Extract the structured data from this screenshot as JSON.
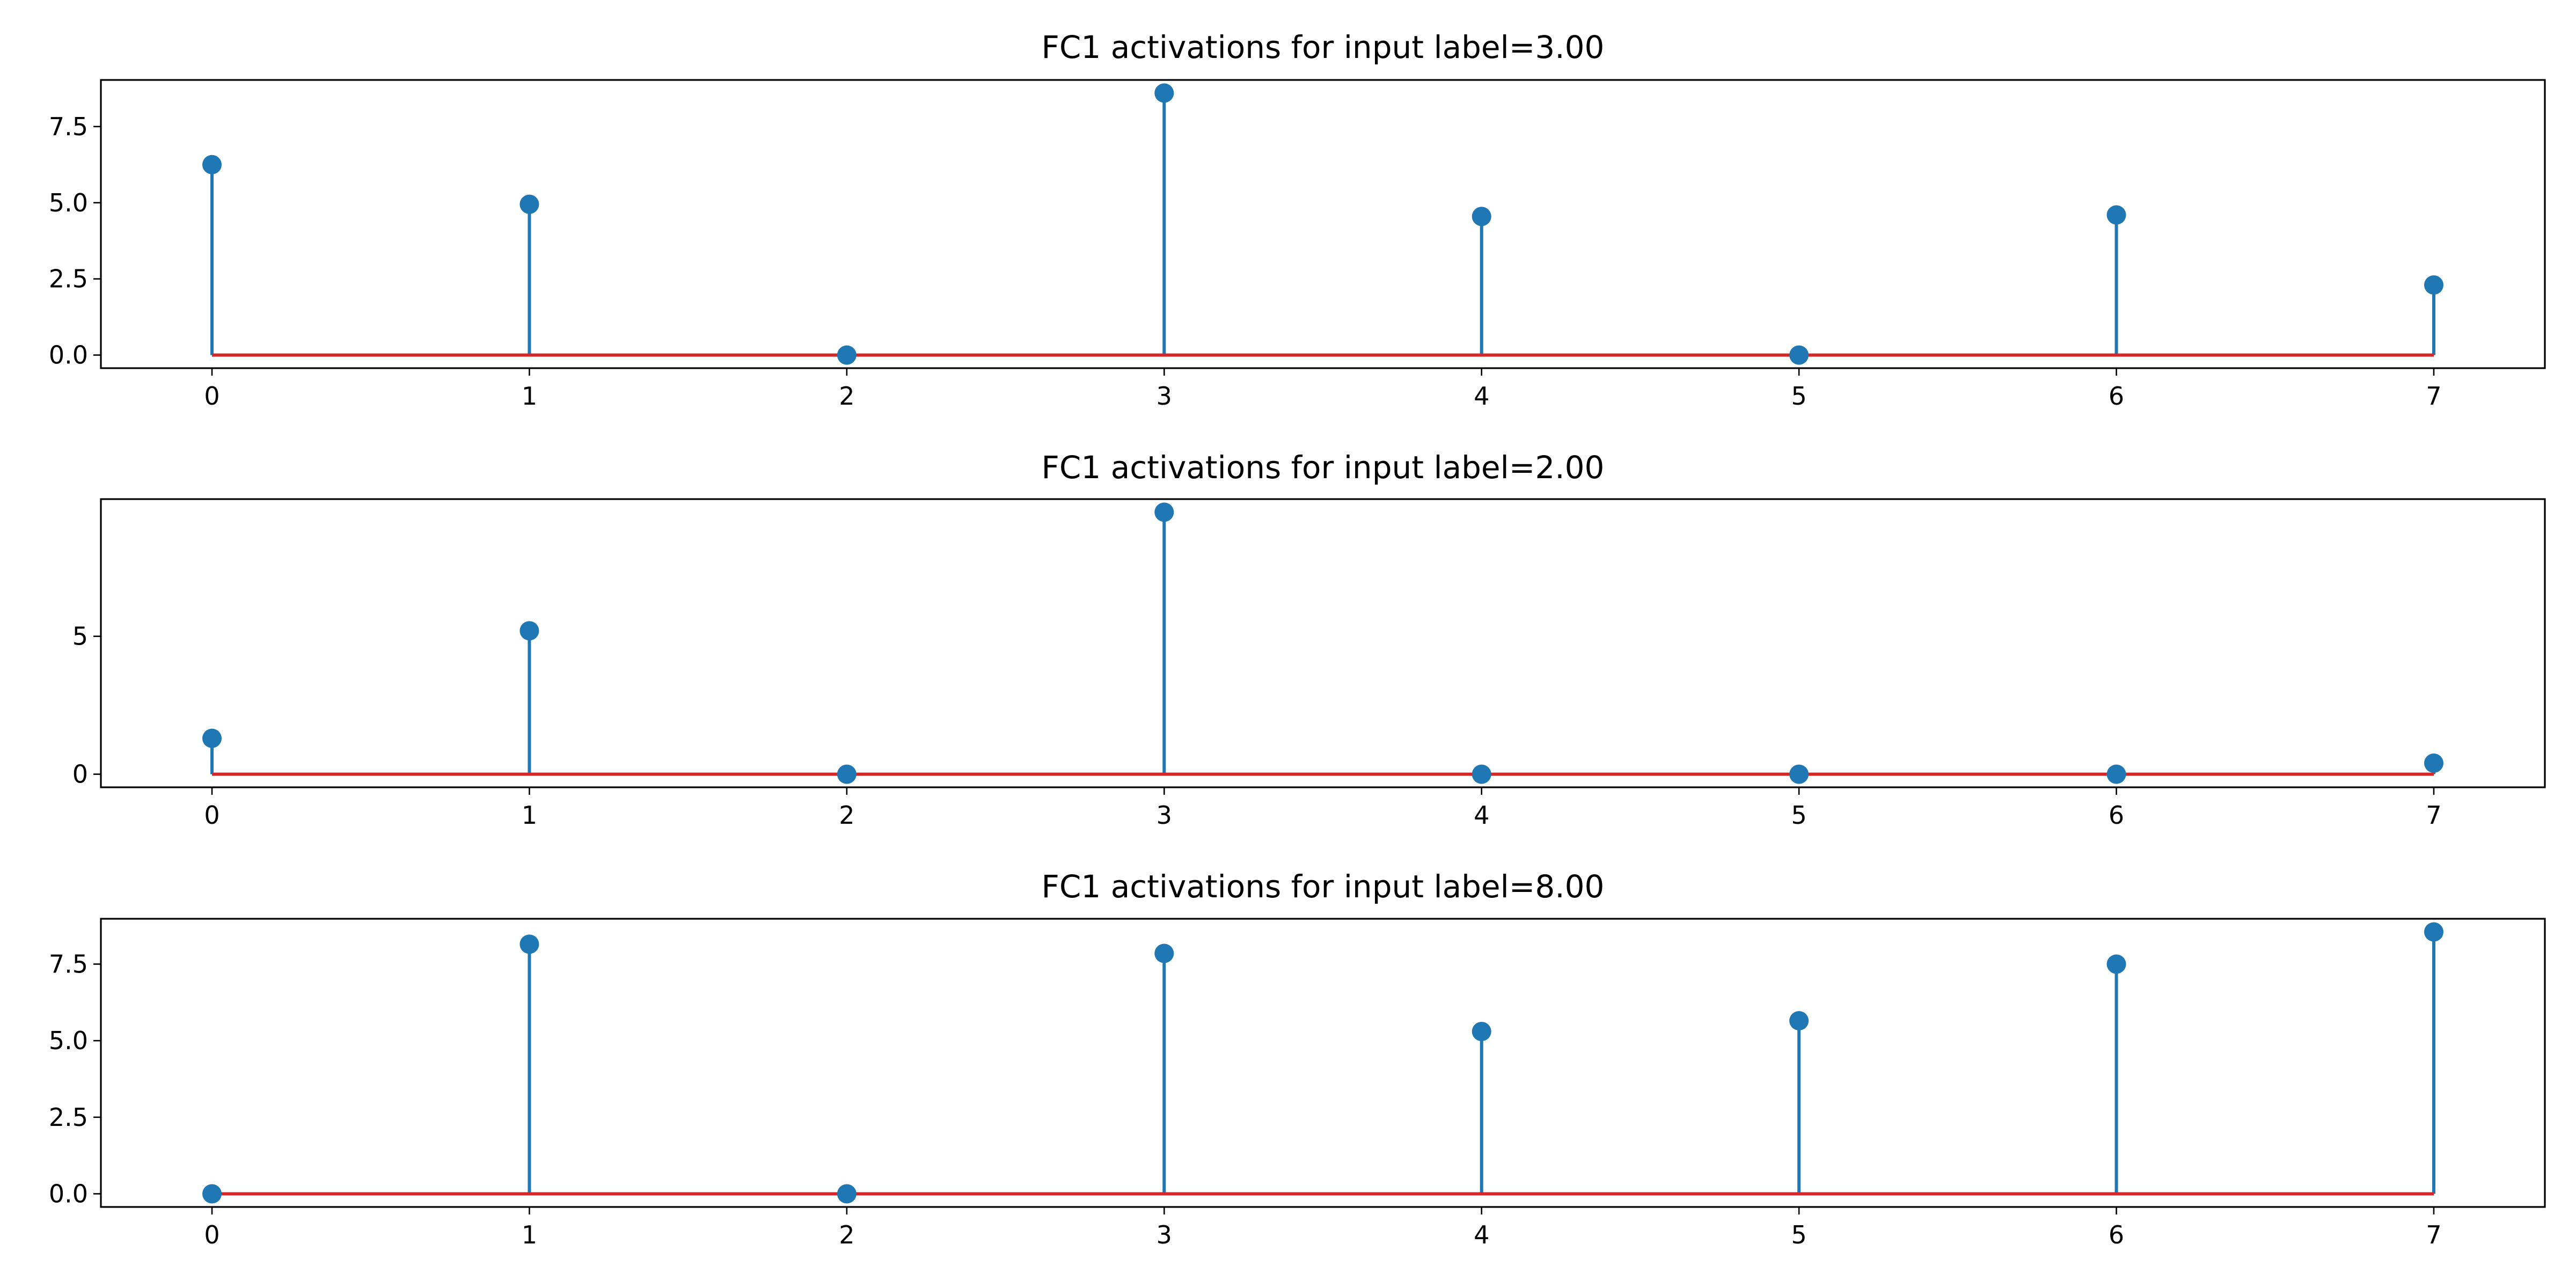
{
  "chart_data": [
    {
      "type": "stem",
      "title": "FC1 activations for input label=3.00",
      "xlabel": "",
      "ylabel": "",
      "x": [
        0,
        1,
        2,
        3,
        4,
        5,
        6,
        7
      ],
      "values": [
        6.25,
        4.95,
        0.0,
        8.6,
        4.55,
        0.0,
        4.6,
        2.3
      ],
      "xlim": [
        -0.35,
        7.35
      ],
      "ylim": [
        -0.43,
        9.03
      ],
      "yticks": [
        0.0,
        2.5,
        5.0,
        7.5
      ],
      "ytick_labels": [
        "0.0",
        "2.5",
        "5.0",
        "7.5"
      ],
      "xticks": [
        0,
        1,
        2,
        3,
        4,
        5,
        6,
        7
      ],
      "xtick_labels": [
        "0",
        "1",
        "2",
        "3",
        "4",
        "5",
        "6",
        "7"
      ],
      "grid": false,
      "colors": {
        "stem": "#1f77b4",
        "marker": "#1f77b4",
        "baseline": "#d62728"
      }
    },
    {
      "type": "stem",
      "title": "FC1 activations for input label=2.00",
      "xlabel": "",
      "ylabel": "",
      "x": [
        0,
        1,
        2,
        3,
        4,
        5,
        6,
        7
      ],
      "values": [
        1.3,
        5.2,
        0.0,
        9.5,
        0.0,
        0.0,
        0.0,
        0.4
      ],
      "xlim": [
        -0.35,
        7.35
      ],
      "ylim": [
        -0.475,
        9.975
      ],
      "yticks": [
        0,
        5
      ],
      "ytick_labels": [
        "0",
        "5"
      ],
      "xticks": [
        0,
        1,
        2,
        3,
        4,
        5,
        6,
        7
      ],
      "xtick_labels": [
        "0",
        "1",
        "2",
        "3",
        "4",
        "5",
        "6",
        "7"
      ],
      "grid": false,
      "colors": {
        "stem": "#1f77b4",
        "marker": "#1f77b4",
        "baseline": "#d62728"
      }
    },
    {
      "type": "stem",
      "title": "FC1 activations for input label=8.00",
      "xlabel": "",
      "ylabel": "",
      "x": [
        0,
        1,
        2,
        3,
        4,
        5,
        6,
        7
      ],
      "values": [
        0.0,
        8.15,
        0.0,
        7.85,
        5.3,
        5.65,
        7.5,
        8.55
      ],
      "xlim": [
        -0.35,
        7.35
      ],
      "ylim": [
        -0.43,
        8.98
      ],
      "yticks": [
        0.0,
        2.5,
        5.0,
        7.5
      ],
      "ytick_labels": [
        "0.0",
        "2.5",
        "5.0",
        "7.5"
      ],
      "xticks": [
        0,
        1,
        2,
        3,
        4,
        5,
        6,
        7
      ],
      "xtick_labels": [
        "0",
        "1",
        "2",
        "3",
        "4",
        "5",
        "6",
        "7"
      ],
      "grid": false,
      "colors": {
        "stem": "#1f77b4",
        "marker": "#1f77b4",
        "baseline": "#d62728"
      }
    }
  ]
}
